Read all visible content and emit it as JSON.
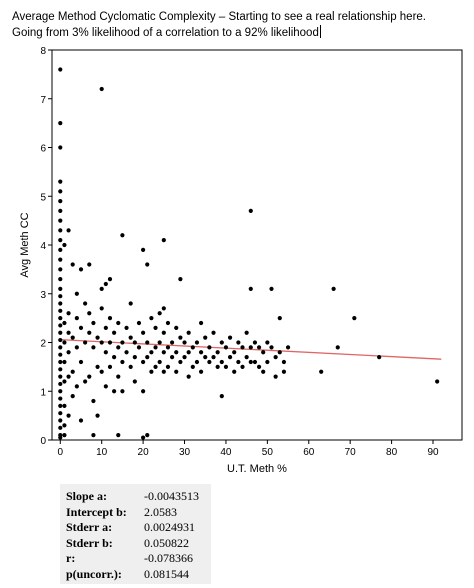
{
  "caption": {
    "line1": "Average Method Cyclomatic Complexity – Starting to see a real relationship here.",
    "line2": "Going from 3% likelihood of a correlation to a 92% likelihood"
  },
  "chart_data": {
    "type": "scatter",
    "xlabel": "U.T. Meth %",
    "ylabel": "Avg Meth CC",
    "xlim": [
      -2,
      97
    ],
    "ylim": [
      0,
      8
    ],
    "xticks": [
      0,
      10,
      20,
      30,
      40,
      50,
      60,
      70,
      80,
      90
    ],
    "yticks": [
      0,
      1,
      2,
      3,
      4,
      5,
      6,
      7,
      8
    ],
    "grid": false,
    "point_color": "#000000",
    "fit_line": {
      "slope": -0.0043513,
      "intercept": 2.0583,
      "x_range": [
        0,
        92
      ],
      "color": "#e06666"
    },
    "points": [
      [
        0,
        7.6
      ],
      [
        0,
        6.5
      ],
      [
        0,
        6.0
      ],
      [
        0,
        5.3
      ],
      [
        0,
        5.1
      ],
      [
        0,
        4.9
      ],
      [
        0,
        4.7
      ],
      [
        0,
        4.5
      ],
      [
        0,
        4.3
      ],
      [
        0,
        4.1
      ],
      [
        0,
        3.9
      ],
      [
        0,
        3.7
      ],
      [
        0,
        3.5
      ],
      [
        0,
        3.3
      ],
      [
        0,
        3.1
      ],
      [
        0,
        2.95
      ],
      [
        0,
        2.8
      ],
      [
        0,
        2.65
      ],
      [
        0,
        2.5
      ],
      [
        0,
        2.35
      ],
      [
        0,
        2.2
      ],
      [
        0,
        2.05
      ],
      [
        0,
        1.9
      ],
      [
        0,
        1.75
      ],
      [
        0,
        1.6
      ],
      [
        0,
        1.45
      ],
      [
        0,
        1.3
      ],
      [
        0,
        1.15
      ],
      [
        0,
        1.0
      ],
      [
        0,
        0.85
      ],
      [
        0,
        0.7
      ],
      [
        0,
        0.55
      ],
      [
        0,
        0.4
      ],
      [
        0,
        0.25
      ],
      [
        0,
        0.1
      ],
      [
        0,
        0.05
      ],
      [
        1,
        4.0
      ],
      [
        1,
        2.4
      ],
      [
        1,
        2.0
      ],
      [
        1,
        1.6
      ],
      [
        1,
        1.2
      ],
      [
        1,
        0.7
      ],
      [
        1,
        0.3
      ],
      [
        1,
        0.1
      ],
      [
        2,
        4.3
      ],
      [
        2,
        2.6
      ],
      [
        2,
        2.2
      ],
      [
        2,
        1.8
      ],
      [
        2,
        1.3
      ],
      [
        2,
        0.5
      ],
      [
        3,
        3.6
      ],
      [
        3,
        2.1
      ],
      [
        3,
        1.4
      ],
      [
        3,
        0.9
      ],
      [
        4,
        3.0
      ],
      [
        4,
        2.5
      ],
      [
        4,
        1.9
      ],
      [
        4,
        1.1
      ],
      [
        5,
        3.5
      ],
      [
        5,
        2.3
      ],
      [
        5,
        1.6
      ],
      [
        5,
        0.4
      ],
      [
        6,
        2.8
      ],
      [
        6,
        2.0
      ],
      [
        6,
        1.2
      ],
      [
        7,
        3.6
      ],
      [
        7,
        2.6
      ],
      [
        7,
        2.2
      ],
      [
        7,
        1.3
      ],
      [
        8,
        2.4
      ],
      [
        8,
        1.9
      ],
      [
        8,
        0.8
      ],
      [
        8,
        0.1
      ],
      [
        9,
        2.1
      ],
      [
        9,
        1.5
      ],
      [
        9,
        0.5
      ],
      [
        10,
        7.2
      ],
      [
        10,
        3.1
      ],
      [
        10,
        2.7
      ],
      [
        10,
        2.0
      ],
      [
        10,
        1.4
      ],
      [
        11,
        3.2
      ],
      [
        11,
        2.3
      ],
      [
        11,
        1.8
      ],
      [
        11,
        1.1
      ],
      [
        12,
        3.3
      ],
      [
        12,
        2.5
      ],
      [
        12,
        2.0
      ],
      [
        12,
        1.5
      ],
      [
        13,
        2.2
      ],
      [
        13,
        1.7
      ],
      [
        13,
        1.0
      ],
      [
        14,
        2.4
      ],
      [
        14,
        1.9
      ],
      [
        14,
        1.3
      ],
      [
        14,
        0.1
      ],
      [
        15,
        4.2
      ],
      [
        15,
        2.0
      ],
      [
        15,
        1.6
      ],
      [
        15,
        1.0
      ],
      [
        16,
        2.3
      ],
      [
        16,
        1.8
      ],
      [
        17,
        2.8
      ],
      [
        17,
        2.1
      ],
      [
        17,
        1.5
      ],
      [
        18,
        2.0
      ],
      [
        18,
        1.7
      ],
      [
        18,
        1.2
      ],
      [
        19,
        2.4
      ],
      [
        19,
        1.9
      ],
      [
        20,
        3.9
      ],
      [
        20,
        2.2
      ],
      [
        20,
        1.6
      ],
      [
        20,
        1.0
      ],
      [
        20,
        0.05
      ],
      [
        21,
        3.6
      ],
      [
        21,
        2.0
      ],
      [
        21,
        1.7
      ],
      [
        21,
        0.1
      ],
      [
        22,
        2.5
      ],
      [
        22,
        1.8
      ],
      [
        22,
        1.4
      ],
      [
        23,
        2.3
      ],
      [
        23,
        1.9
      ],
      [
        23,
        1.5
      ],
      [
        24,
        2.6
      ],
      [
        24,
        2.0
      ],
      [
        24,
        1.6
      ],
      [
        25,
        4.1
      ],
      [
        25,
        2.7
      ],
      [
        25,
        2.2
      ],
      [
        25,
        1.8
      ],
      [
        25,
        1.4
      ],
      [
        26,
        2.4
      ],
      [
        26,
        1.9
      ],
      [
        26,
        1.5
      ],
      [
        27,
        2.0
      ],
      [
        27,
        1.7
      ],
      [
        28,
        2.3
      ],
      [
        28,
        1.8
      ],
      [
        28,
        1.4
      ],
      [
        29,
        3.3
      ],
      [
        29,
        2.1
      ],
      [
        29,
        1.6
      ],
      [
        30,
        2.0
      ],
      [
        30,
        1.7
      ],
      [
        31,
        2.2
      ],
      [
        31,
        1.8
      ],
      [
        31,
        1.3
      ],
      [
        32,
        1.9
      ],
      [
        32,
        1.5
      ],
      [
        33,
        2.0
      ],
      [
        33,
        1.6
      ],
      [
        34,
        2.4
      ],
      [
        34,
        1.8
      ],
      [
        34,
        1.4
      ],
      [
        35,
        2.1
      ],
      [
        35,
        1.7
      ],
      [
        36,
        1.9
      ],
      [
        36,
        1.6
      ],
      [
        37,
        2.2
      ],
      [
        37,
        1.7
      ],
      [
        38,
        1.8
      ],
      [
        38,
        1.5
      ],
      [
        39,
        2.0
      ],
      [
        39,
        1.6
      ],
      [
        39,
        0.9
      ],
      [
        40,
        1.9
      ],
      [
        40,
        1.5
      ],
      [
        41,
        2.1
      ],
      [
        41,
        1.7
      ],
      [
        42,
        1.8
      ],
      [
        42,
        1.4
      ],
      [
        43,
        2.0
      ],
      [
        43,
        1.6
      ],
      [
        44,
        1.9
      ],
      [
        44,
        1.5
      ],
      [
        45,
        2.2
      ],
      [
        45,
        1.7
      ],
      [
        46,
        4.7
      ],
      [
        46,
        3.1
      ],
      [
        46,
        1.9
      ],
      [
        46,
        1.6
      ],
      [
        47,
        2.0
      ],
      [
        47,
        1.6
      ],
      [
        48,
        1.9
      ],
      [
        48,
        1.5
      ],
      [
        49,
        1.8
      ],
      [
        49,
        1.4
      ],
      [
        50,
        2.0
      ],
      [
        50,
        1.6
      ],
      [
        51,
        3.1
      ],
      [
        51,
        1.9
      ],
      [
        52,
        1.7
      ],
      [
        52,
        1.3
      ],
      [
        53,
        2.5
      ],
      [
        53,
        1.8
      ],
      [
        54,
        1.6
      ],
      [
        54,
        1.4
      ],
      [
        55,
        1.9
      ],
      [
        63,
        1.4
      ],
      [
        66,
        3.1
      ],
      [
        67,
        1.9
      ],
      [
        71,
        2.5
      ],
      [
        77,
        1.7
      ],
      [
        91,
        1.2
      ]
    ]
  },
  "stats": [
    {
      "label": "Slope a:",
      "value": "-0.0043513"
    },
    {
      "label": "Intercept b:",
      "value": "2.0583"
    },
    {
      "label": "Stderr a:",
      "value": "0.0024931"
    },
    {
      "label": "Stderr b:",
      "value": "0.050822"
    },
    {
      "label": "r:",
      "value": "-0.078366"
    },
    {
      "label": "p(uncorr.):",
      "value": "0.081544"
    }
  ]
}
